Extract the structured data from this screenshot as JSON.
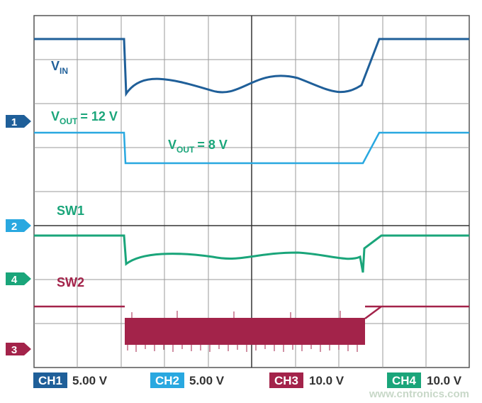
{
  "traces": {
    "vin": {
      "symbol": "V",
      "subscript": "IN"
    },
    "vout_high": {
      "symbol": "V",
      "subscript": "OUT",
      "rest": "= 12 V"
    },
    "vout_low": {
      "symbol": "V",
      "subscript": "OUT",
      "rest": "= 8 V"
    },
    "sw1": {
      "label": "SW1"
    },
    "sw2": {
      "label": "SW2"
    }
  },
  "markers": [
    "1",
    "2",
    "4",
    "3"
  ],
  "channels": [
    {
      "name": "CH1",
      "scale": "5.00 V"
    },
    {
      "name": "CH2",
      "scale": "5.00 V"
    },
    {
      "name": "CH3",
      "scale": "10.0 V"
    },
    {
      "name": "CH4",
      "scale": "10.0 V"
    }
  ],
  "watermark": "www.cntronics.com"
}
